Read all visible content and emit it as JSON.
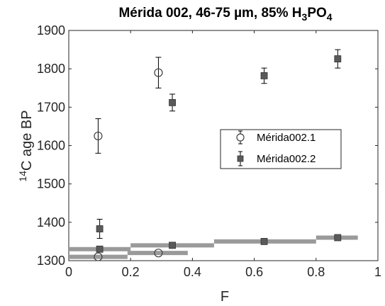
{
  "chart_data": {
    "type": "scatter",
    "title": {
      "main": "Mérida 002, 46-75 µm, 85% H",
      "sub1": "3",
      "mid": "PO",
      "sub2": "4"
    },
    "xlabel": "F",
    "ylabel": {
      "sup": "14",
      "main": "C age BP"
    },
    "xlim": [
      0,
      1
    ],
    "ylim": [
      1300,
      1900
    ],
    "xticks": [
      0,
      0.2,
      0.4,
      0.6,
      0.8,
      1
    ],
    "xtick_labels": [
      "0",
      "0.2",
      "0.4",
      "0.6",
      "0.8",
      "1"
    ],
    "yticks": [
      1300,
      1400,
      1500,
      1600,
      1700,
      1800,
      1900
    ],
    "ytick_labels": [
      "1300",
      "1400",
      "1500",
      "1600",
      "1700",
      "1800",
      "1900"
    ],
    "grid": false,
    "legend_position": "right-middle",
    "series": [
      {
        "name": "Mérida002.1",
        "marker": "open-circle",
        "color": "#404040",
        "points": [
          {
            "x": 0.095,
            "y": 1625,
            "err": 45
          },
          {
            "x": 0.29,
            "y": 1790,
            "err": 40
          }
        ]
      },
      {
        "name": "Mérida002.2",
        "marker": "filled-square",
        "color": "#5a5a5a",
        "points": [
          {
            "x": 0.1,
            "y": 1383,
            "err": 25
          },
          {
            "x": 0.335,
            "y": 1712,
            "err": 22
          },
          {
            "x": 0.632,
            "y": 1782,
            "err": 20
          },
          {
            "x": 0.87,
            "y": 1826,
            "err": 24
          }
        ]
      }
    ],
    "range_bars": {
      "color": "#9a9a9a",
      "series1": [
        {
          "x0": 0.0,
          "x1": 0.19,
          "y": 1310
        },
        {
          "x0": 0.19,
          "x1": 0.385,
          "y": 1320
        }
      ],
      "series2": [
        {
          "x0": 0.0,
          "x1": 0.2,
          "y": 1330
        },
        {
          "x0": 0.2,
          "x1": 0.47,
          "y": 1340
        },
        {
          "x0": 0.47,
          "x1": 0.8,
          "y": 1350
        },
        {
          "x0": 0.8,
          "x1": 0.935,
          "y": 1360
        }
      ]
    },
    "range_markers": {
      "series1": [
        {
          "x": 0.095,
          "y": 1310
        },
        {
          "x": 0.29,
          "y": 1320
        }
      ],
      "series2": [
        {
          "x": 0.1,
          "y": 1330
        },
        {
          "x": 0.335,
          "y": 1340
        },
        {
          "x": 0.632,
          "y": 1350
        },
        {
          "x": 0.87,
          "y": 1360
        }
      ]
    }
  }
}
